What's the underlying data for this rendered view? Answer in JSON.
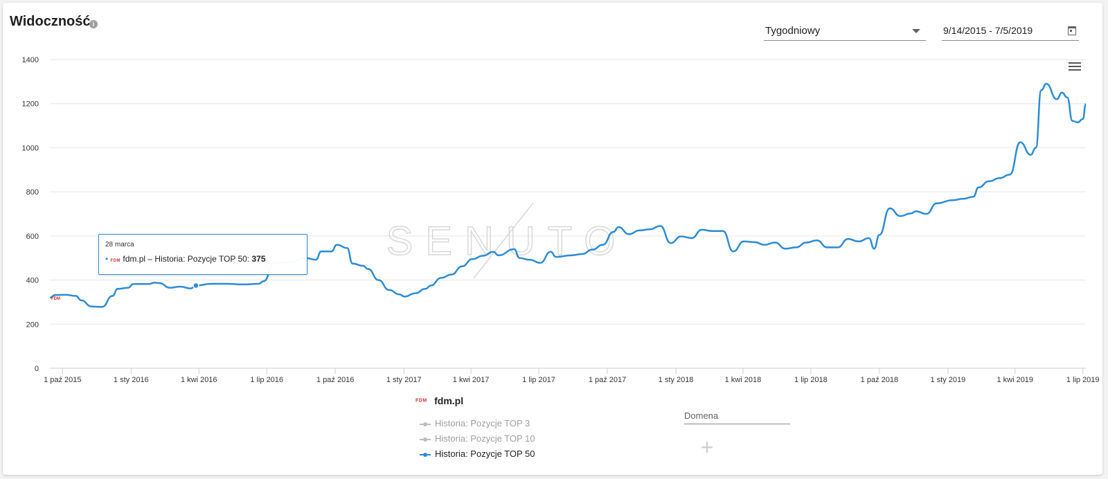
{
  "header": {
    "title": "Widoczność",
    "info_icon": "info-icon"
  },
  "controls": {
    "interval": {
      "value": "Tygodniowy"
    },
    "date_range": {
      "value": "9/14/2015 - 7/5/2019"
    }
  },
  "chart_menu_icon": "hamburger-menu-icon",
  "tooltip": {
    "date": "28 marca",
    "label": "fdm.pl – Historia: Pozycje TOP 50:",
    "value": "375",
    "logo": "FDM"
  },
  "watermark": "SENUTO",
  "legend": {
    "domain": "fdm.pl",
    "logo": "FDM",
    "items": [
      {
        "label": "Historia: Pozycje TOP 3",
        "active": false,
        "color": "#bdbdbd"
      },
      {
        "label": "Historia: Pozycje TOP 10",
        "active": false,
        "color": "#bdbdbd"
      },
      {
        "label": "Historia: Pozycje TOP 50",
        "active": true,
        "color": "#2b8bd6"
      }
    ]
  },
  "domain_input": {
    "placeholder": "Domena"
  },
  "add_button": "+",
  "colors": {
    "series": "#2b8bd6",
    "inactive": "#bdbdbd",
    "grid": "#e6e6e6"
  },
  "chart_data": {
    "type": "line",
    "x_axis": {
      "type": "datetime",
      "min": "2015-09-14",
      "max": "2019-07-05"
    },
    "ylim": [
      0,
      1400
    ],
    "yticks": [
      0,
      200,
      400,
      600,
      800,
      1000,
      1200,
      1400
    ],
    "xticks": [
      {
        "date": "2015-10-01",
        "label": "1 paź 2015"
      },
      {
        "date": "2016-01-01",
        "label": "1 sty 2016"
      },
      {
        "date": "2016-04-01",
        "label": "1 kwi 2016"
      },
      {
        "date": "2016-07-01",
        "label": "1 lip 2016"
      },
      {
        "date": "2016-10-01",
        "label": "1 paź 2016"
      },
      {
        "date": "2017-01-01",
        "label": "1 sty 2017"
      },
      {
        "date": "2017-04-01",
        "label": "1 kwi 2017"
      },
      {
        "date": "2017-07-01",
        "label": "1 lip 2017"
      },
      {
        "date": "2017-10-01",
        "label": "1 paź 2017"
      },
      {
        "date": "2018-01-01",
        "label": "1 sty 2018"
      },
      {
        "date": "2018-04-01",
        "label": "1 kwi 2018"
      },
      {
        "date": "2018-07-01",
        "label": "1 lip 2018"
      },
      {
        "date": "2018-10-01",
        "label": "1 paź 2018"
      },
      {
        "date": "2019-01-01",
        "label": "1 sty 2019"
      },
      {
        "date": "2019-04-01",
        "label": "1 kwi 2019"
      },
      {
        "date": "2019-07-01",
        "label": "1 lip 2019"
      }
    ],
    "grid": true,
    "legend_position": "bottom",
    "series": [
      {
        "name": "Historia: Pozycje TOP 50",
        "highlight": {
          "date": "2016-03-28",
          "value": 375
        },
        "points": [
          [
            "2015-09-14",
            320
          ],
          [
            "2015-09-21",
            332
          ],
          [
            "2015-10-05",
            333
          ],
          [
            "2015-10-19",
            328
          ],
          [
            "2015-10-26",
            308
          ],
          [
            "2015-11-09",
            280
          ],
          [
            "2015-11-23",
            278
          ],
          [
            "2015-12-07",
            328
          ],
          [
            "2015-12-14",
            360
          ],
          [
            "2015-12-28",
            365
          ],
          [
            "2016-01-04",
            382
          ],
          [
            "2016-01-25",
            382
          ],
          [
            "2016-02-01",
            388
          ],
          [
            "2016-02-08",
            386
          ],
          [
            "2016-02-22",
            365
          ],
          [
            "2016-03-07",
            370
          ],
          [
            "2016-03-21",
            362
          ],
          [
            "2016-03-28",
            375
          ],
          [
            "2016-04-18",
            383
          ],
          [
            "2016-05-09",
            383
          ],
          [
            "2016-05-30",
            380
          ],
          [
            "2016-06-20",
            383
          ],
          [
            "2016-06-27",
            395
          ],
          [
            "2016-07-11",
            478
          ],
          [
            "2016-08-01",
            480
          ],
          [
            "2016-08-22",
            500
          ],
          [
            "2016-09-05",
            492
          ],
          [
            "2016-09-12",
            530
          ],
          [
            "2016-09-26",
            530
          ],
          [
            "2016-10-03",
            560
          ],
          [
            "2016-10-17",
            545
          ],
          [
            "2016-10-24",
            475
          ],
          [
            "2016-11-07",
            465
          ],
          [
            "2016-11-14",
            450
          ],
          [
            "2016-11-28",
            400
          ],
          [
            "2016-12-12",
            355
          ],
          [
            "2016-12-26",
            335
          ],
          [
            "2017-01-02",
            325
          ],
          [
            "2017-01-16",
            340
          ],
          [
            "2017-01-30",
            360
          ],
          [
            "2017-02-06",
            375
          ],
          [
            "2017-02-20",
            410
          ],
          [
            "2017-03-06",
            425
          ],
          [
            "2017-03-20",
            462
          ],
          [
            "2017-04-03",
            495
          ],
          [
            "2017-04-17",
            510
          ],
          [
            "2017-05-01",
            528
          ],
          [
            "2017-05-08",
            512
          ],
          [
            "2017-05-29",
            540
          ],
          [
            "2017-06-05",
            500
          ],
          [
            "2017-06-19",
            492
          ],
          [
            "2017-07-03",
            478
          ],
          [
            "2017-07-17",
            528
          ],
          [
            "2017-07-24",
            505
          ],
          [
            "2017-08-14",
            512
          ],
          [
            "2017-08-28",
            518
          ],
          [
            "2017-09-11",
            538
          ],
          [
            "2017-09-25",
            560
          ],
          [
            "2017-10-09",
            618
          ],
          [
            "2017-10-16",
            640
          ],
          [
            "2017-10-30",
            608
          ],
          [
            "2017-11-13",
            625
          ],
          [
            "2017-11-27",
            630
          ],
          [
            "2017-12-11",
            645
          ],
          [
            "2017-12-25",
            568
          ],
          [
            "2018-01-08",
            598
          ],
          [
            "2018-01-22",
            590
          ],
          [
            "2018-02-05",
            628
          ],
          [
            "2018-02-19",
            622
          ],
          [
            "2018-03-05",
            622
          ],
          [
            "2018-03-19",
            530
          ],
          [
            "2018-04-02",
            575
          ],
          [
            "2018-04-16",
            572
          ],
          [
            "2018-04-30",
            560
          ],
          [
            "2018-05-14",
            570
          ],
          [
            "2018-05-28",
            542
          ],
          [
            "2018-06-11",
            548
          ],
          [
            "2018-06-25",
            570
          ],
          [
            "2018-07-09",
            580
          ],
          [
            "2018-07-23",
            548
          ],
          [
            "2018-08-06",
            548
          ],
          [
            "2018-08-20",
            586
          ],
          [
            "2018-09-03",
            575
          ],
          [
            "2018-09-17",
            590
          ],
          [
            "2018-09-24",
            542
          ],
          [
            "2018-10-01",
            605
          ],
          [
            "2018-10-15",
            725
          ],
          [
            "2018-10-29",
            690
          ],
          [
            "2018-11-12",
            702
          ],
          [
            "2018-11-19",
            712
          ],
          [
            "2018-12-03",
            700
          ],
          [
            "2018-12-17",
            748
          ],
          [
            "2019-01-07",
            762
          ],
          [
            "2019-01-21",
            768
          ],
          [
            "2019-02-04",
            778
          ],
          [
            "2019-02-11",
            820
          ],
          [
            "2019-02-25",
            848
          ],
          [
            "2019-03-11",
            862
          ],
          [
            "2019-03-25",
            878
          ],
          [
            "2019-04-08",
            1025
          ],
          [
            "2019-04-22",
            968
          ],
          [
            "2019-04-29",
            1000
          ],
          [
            "2019-05-06",
            1260
          ],
          [
            "2019-05-13",
            1290
          ],
          [
            "2019-05-27",
            1220
          ],
          [
            "2019-06-03",
            1250
          ],
          [
            "2019-06-10",
            1228
          ],
          [
            "2019-06-17",
            1122
          ],
          [
            "2019-06-24",
            1115
          ],
          [
            "2019-07-01",
            1130
          ],
          [
            "2019-07-05",
            1198
          ]
        ]
      }
    ]
  }
}
